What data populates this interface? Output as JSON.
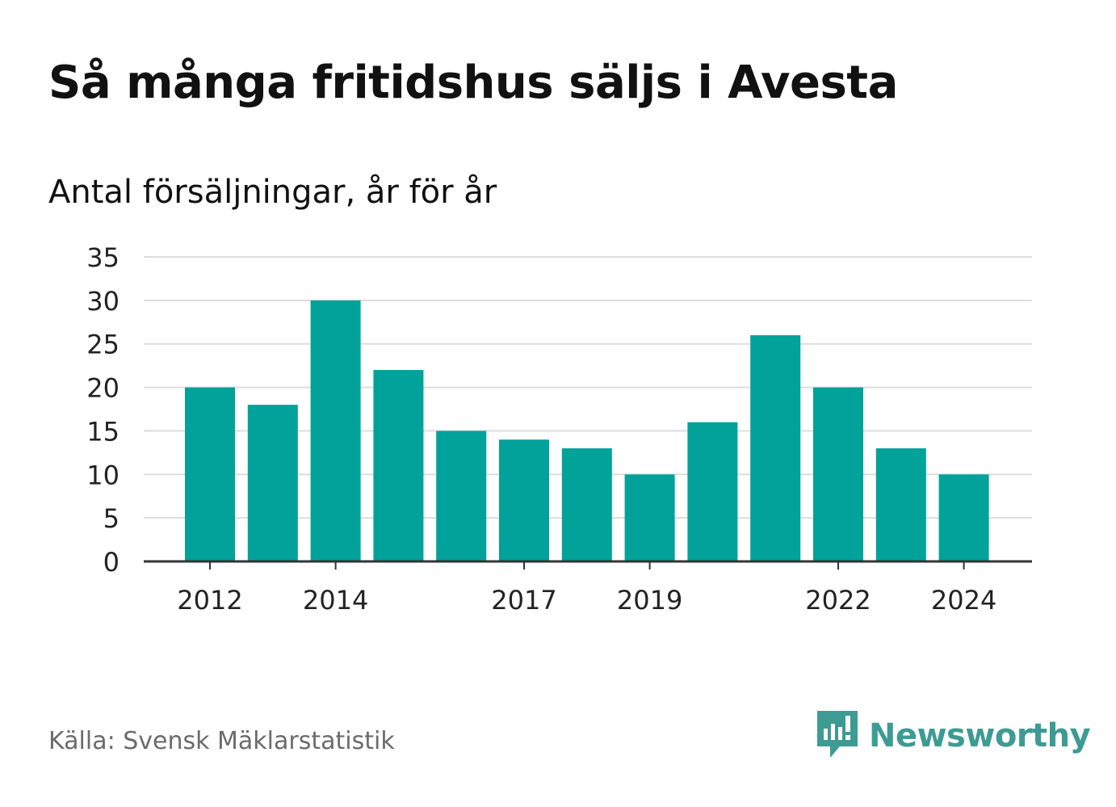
{
  "title": "Så många fritidshus säljs i Avesta",
  "subtitle": "Antal försäljningar, år för år",
  "source": "Källa: Svensk Mäklarstatistik",
  "brand": {
    "name": "Newsworthy",
    "icon": "newsworthy-logo-icon",
    "color": "#3d9b93"
  },
  "colors": {
    "bar": "#00a29a",
    "grid": "#dddddd",
    "axis": "#333333"
  },
  "chart_data": {
    "type": "bar",
    "categories": [
      "2012",
      "2013",
      "2014",
      "2015",
      "2016",
      "2017",
      "2018",
      "2019",
      "2020",
      "2021",
      "2022",
      "2023",
      "2024"
    ],
    "values": [
      20,
      18,
      30,
      22,
      15,
      14,
      13,
      10,
      16,
      26,
      20,
      13,
      10
    ],
    "x_tick_labels": [
      "2012",
      "2014",
      "2017",
      "2019",
      "2022",
      "2024"
    ],
    "y_ticks": [
      0,
      5,
      10,
      15,
      20,
      25,
      30,
      35
    ],
    "ylim": [
      0,
      35
    ],
    "grid": true,
    "xlabel": "",
    "ylabel": ""
  }
}
